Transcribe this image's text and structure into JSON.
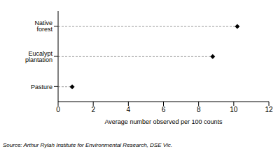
{
  "chart_data": {
    "type": "dot",
    "orientation": "horizontal",
    "categories": [
      "Native forest",
      "Eucalypt plantation",
      "Pasture"
    ],
    "values": [
      10.2,
      8.8,
      0.8
    ],
    "color": "#000000",
    "marker": "diamond",
    "line_style": "dashed",
    "x_label": "Average number observed per 100 counts",
    "source": "Source: Arthur Rylah Institute for Environmental Research, DSE Vic.",
    "xlim": [
      0,
      12
    ],
    "xticks": [
      0,
      2,
      4,
      6,
      8,
      10,
      12
    ],
    "grid": false
  }
}
